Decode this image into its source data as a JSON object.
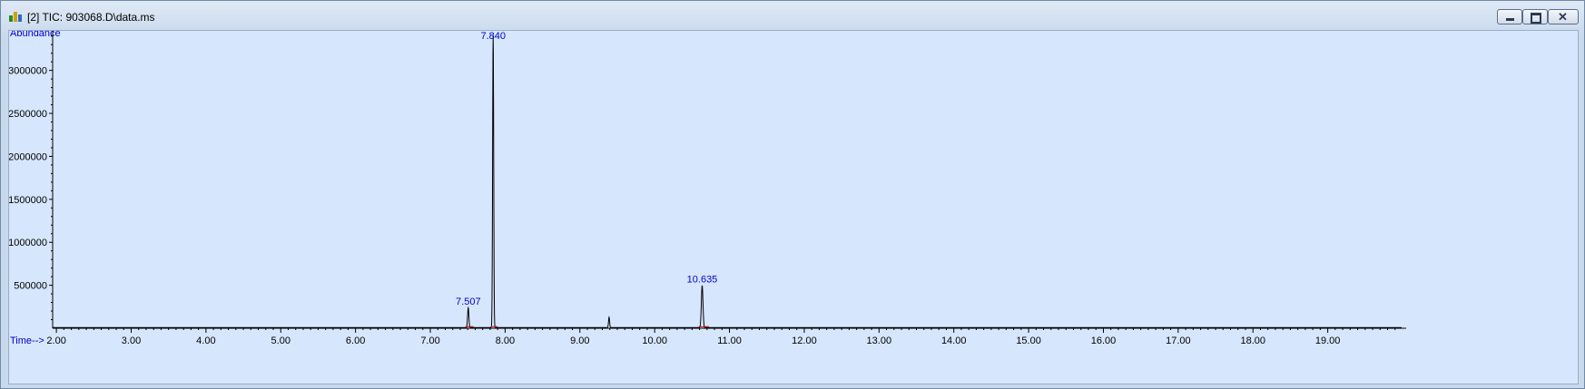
{
  "window": {
    "title": "[2] TIC: 903068.D\\data.ms",
    "icon": "chromatogram-app-icon",
    "controls": [
      "minimize-icon",
      "maximize-icon",
      "close-icon"
    ]
  },
  "chart_data": {
    "type": "line",
    "ylabel": "Abundance",
    "xlabel": "Time-->",
    "xlim": [
      1.95,
      20.0
    ],
    "ylim": [
      0,
      3450000
    ],
    "yticks": [
      500000,
      1000000,
      1500000,
      2000000,
      2500000,
      3000000
    ],
    "ytick_labels": [
      "500000",
      "1000000",
      "1500000",
      "2000000",
      "2500000",
      "3000000"
    ],
    "xticks": [
      2,
      3,
      4,
      5,
      6,
      7,
      8,
      9,
      10,
      11,
      12,
      13,
      14,
      15,
      16,
      17,
      18,
      19
    ],
    "xtick_labels": [
      "2.00",
      "3.00",
      "4.00",
      "5.00",
      "6.00",
      "7.00",
      "8.00",
      "9.00",
      "10.00",
      "11.00",
      "12.00",
      "13.00",
      "14.00",
      "15.00",
      "16.00",
      "17.00",
      "18.00",
      "19.00"
    ],
    "peaks": [
      {
        "rt": 7.507,
        "label": "7.507",
        "height": 230000
      },
      {
        "rt": 7.84,
        "label": "7.840",
        "height": 3400000
      },
      {
        "rt": 9.39,
        "height": 120000
      },
      {
        "rt": 10.635,
        "label": "10.635",
        "height": 490000
      }
    ],
    "baseline": 8000,
    "grid": false,
    "colors": {
      "trace": "#000000",
      "label": "#0000cc",
      "integration": "#cc0000"
    }
  }
}
